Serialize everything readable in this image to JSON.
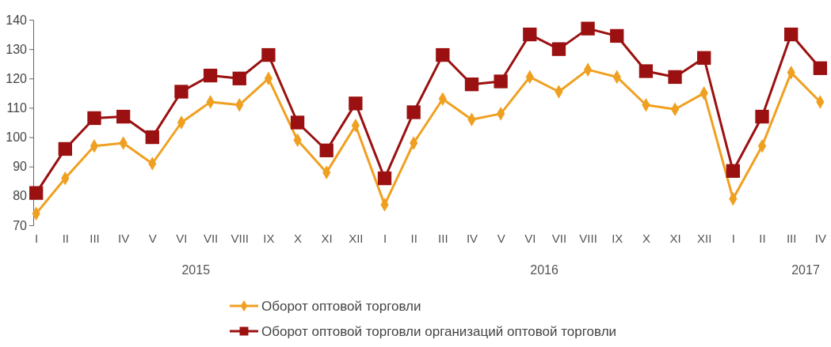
{
  "chart_data": {
    "type": "line",
    "categories": [
      "I",
      "II",
      "III",
      "IV",
      "V",
      "VI",
      "VII",
      "VIII",
      "IX",
      "X",
      "XI",
      "XII",
      "I",
      "II",
      "III",
      "IV",
      "V",
      "VI",
      "VII",
      "VIII",
      "IX",
      "X",
      "XI",
      "XII",
      "I",
      "II",
      "III",
      "IV"
    ],
    "series": [
      {
        "name": "Оборот оптовой торговли",
        "color": "#f0a020",
        "marker": "diamond",
        "values": [
          74,
          86,
          97,
          98,
          91,
          105,
          112,
          111,
          120,
          99,
          88,
          104,
          77,
          98,
          113,
          106,
          108,
          120.5,
          115.5,
          123,
          120.5,
          111,
          109.5,
          115,
          79,
          97,
          122,
          112
        ]
      },
      {
        "name": "Оборот оптовой торговли организаций оптовой торговли",
        "color": "#9b1010",
        "marker": "square",
        "values": [
          81,
          96,
          106.5,
          107,
          100,
          115.5,
          121,
          120,
          128,
          105,
          95.5,
          111.5,
          86,
          108.5,
          128,
          118,
          119,
          135,
          130,
          137,
          134.5,
          122.5,
          120.5,
          127,
          88.5,
          107,
          135,
          123.5
        ]
      }
    ],
    "annotations": [
      "2015",
      "2016",
      "2017"
    ],
    "ylim": [
      70,
      140
    ],
    "yticks": [
      70,
      80,
      90,
      100,
      110,
      120,
      130,
      140
    ],
    "grid": false,
    "legend": "bottom",
    "line_style": "solid"
  }
}
